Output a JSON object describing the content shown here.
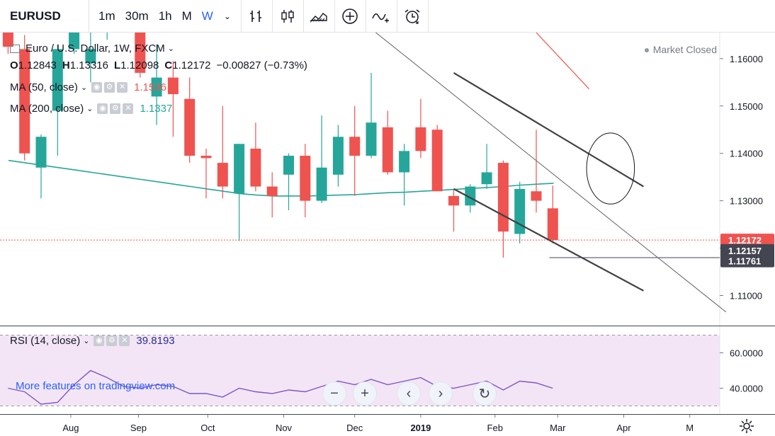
{
  "toolbar": {
    "symbol": "EURUSD",
    "intervals": [
      "1m",
      "30m",
      "1h",
      "M",
      "W"
    ],
    "active_interval": "W",
    "tools": [
      "indicators-icon",
      "candles-icon",
      "compare-icon",
      "add-icon",
      "alert-icon",
      "replay-icon"
    ]
  },
  "legend": {
    "title": "Euro / U.S. Dollar, 1W, FXCM",
    "o_label": "O",
    "o_value": "1.12843",
    "h_label": "H",
    "h_value": "1.13316",
    "l_label": "L",
    "l_value": "1.12098",
    "c_label": "C",
    "c_value": "1.12172",
    "change": "−0.00827 (−0.73%)",
    "ma50_label": "MA (50, close)",
    "ma50_value": "1.1536",
    "ma200_label": "MA (200, close)",
    "ma200_value": "1.1337",
    "market_status": "Market Closed"
  },
  "rsi_legend": {
    "label": "RSI (14, close)",
    "value": "39.8193"
  },
  "watermark": "More features on tradingview.com",
  "colors": {
    "up": "#26a69a",
    "down": "#ef5350",
    "ma50": "#ef5350",
    "ma200": "#26a69a",
    "rsi_line": "#7e57c2",
    "rsi_band": "#f3e5f5",
    "trend": "#404040",
    "accent": "#2962ff"
  },
  "chart_data": {
    "type": "candlestick",
    "title": "Euro / U.S. Dollar, 1W, FXCM",
    "candles": [
      {
        "o": 1.1695,
        "h": 1.172,
        "l": 1.161,
        "c": 1.1625
      },
      {
        "o": 1.162,
        "h": 1.165,
        "l": 1.1385,
        "c": 1.14
      },
      {
        "o": 1.137,
        "h": 1.144,
        "l": 1.1305,
        "c": 1.1435
      },
      {
        "o": 1.149,
        "h": 1.163,
        "l": 1.1395,
        "c": 1.162
      },
      {
        "o": 1.162,
        "h": 1.1735,
        "l": 1.161,
        "c": 1.17
      },
      {
        "o": 1.159,
        "h": 1.17,
        "l": 1.155,
        "c": 1.162
      },
      {
        "o": 1.169,
        "h": 1.1815,
        "l": 1.164,
        "c": 1.1755
      },
      {
        "o": 1.176,
        "h": 1.1815,
        "l": 1.166,
        "c": 1.1695
      },
      {
        "o": 1.169,
        "h": 1.1725,
        "l": 1.156,
        "c": 1.157
      },
      {
        "o": 1.152,
        "h": 1.163,
        "l": 1.146,
        "c": 1.156
      },
      {
        "o": 1.156,
        "h": 1.1595,
        "l": 1.1435,
        "c": 1.1525
      },
      {
        "o": 1.1515,
        "h": 1.156,
        "l": 1.138,
        "c": 1.1395
      },
      {
        "o": 1.1395,
        "h": 1.141,
        "l": 1.1305,
        "c": 1.139
      },
      {
        "o": 1.138,
        "h": 1.15,
        "l": 1.1305,
        "c": 1.133
      },
      {
        "o": 1.1315,
        "h": 1.142,
        "l": 1.1215,
        "c": 1.142
      },
      {
        "o": 1.141,
        "h": 1.1465,
        "l": 1.132,
        "c": 1.133
      },
      {
        "o": 1.133,
        "h": 1.136,
        "l": 1.1265,
        "c": 1.131
      },
      {
        "o": 1.1355,
        "h": 1.14,
        "l": 1.128,
        "c": 1.1395
      },
      {
        "o": 1.1395,
        "h": 1.142,
        "l": 1.1265,
        "c": 1.13
      },
      {
        "o": 1.13,
        "h": 1.148,
        "l": 1.1295,
        "c": 1.137
      },
      {
        "o": 1.1355,
        "h": 1.146,
        "l": 1.133,
        "c": 1.1435
      },
      {
        "o": 1.1435,
        "h": 1.15,
        "l": 1.131,
        "c": 1.1395
      },
      {
        "o": 1.1395,
        "h": 1.157,
        "l": 1.139,
        "c": 1.1465
      },
      {
        "o": 1.1455,
        "h": 1.149,
        "l": 1.1355,
        "c": 1.136
      },
      {
        "o": 1.136,
        "h": 1.142,
        "l": 1.129,
        "c": 1.1405
      },
      {
        "o": 1.1455,
        "h": 1.1515,
        "l": 1.139,
        "c": 1.1405
      },
      {
        "o": 1.145,
        "h": 1.146,
        "l": 1.132,
        "c": 1.132
      },
      {
        "o": 1.131,
        "h": 1.1325,
        "l": 1.1235,
        "c": 1.129
      },
      {
        "o": 1.129,
        "h": 1.1335,
        "l": 1.1275,
        "c": 1.133
      },
      {
        "o": 1.1335,
        "h": 1.142,
        "l": 1.1325,
        "c": 1.136
      },
      {
        "o": 1.138,
        "h": 1.1385,
        "l": 1.118,
        "c": 1.1235
      },
      {
        "o": 1.123,
        "h": 1.134,
        "l": 1.121,
        "c": 1.1325
      },
      {
        "o": 1.132,
        "h": 1.145,
        "l": 1.1275,
        "c": 1.13
      },
      {
        "o": 1.1284,
        "h": 1.1332,
        "l": 1.121,
        "c": 1.1217
      }
    ],
    "ma200": [
      1.1385,
      1.138,
      1.1375,
      1.137,
      1.1365,
      1.136,
      1.1355,
      1.135,
      1.1345,
      1.134,
      1.1335,
      1.133,
      1.1325,
      1.132,
      1.1315,
      1.1312,
      1.131,
      1.131,
      1.131,
      1.1311,
      1.1312,
      1.1313,
      1.1315,
      1.1317,
      1.1318,
      1.132,
      1.1322,
      1.1324,
      1.1326,
      1.1328,
      1.133,
      1.1333,
      1.1335,
      1.1337
    ],
    "ma50": [
      {
        "i": 30,
        "v": 1.1655
      },
      {
        "i": 33.2,
        "v": 1.1536
      }
    ],
    "trend_lines": [
      {
        "from": {
          "i": 16.5,
          "v": 1.176
        },
        "to": {
          "i": 41.5,
          "v": 1.1065
        }
      },
      {
        "from": {
          "i": 25,
          "v": 1.157
        },
        "to": {
          "i": 36.5,
          "v": 1.133
        }
      },
      {
        "from": {
          "i": 25,
          "v": 1.1325
        },
        "to": {
          "i": 36.5,
          "v": 1.111
        }
      }
    ],
    "horizontal_lines": [
      1.1217,
      1.118
    ],
    "ellipse": {
      "i": 34.5,
      "v": 1.1368,
      "ri": 1.45,
      "rv": 0.0075
    },
    "price_labels": [
      {
        "value": "1.12172",
        "v": 1.1217,
        "bg": "#ef5350"
      },
      {
        "value": "1.12157",
        "v": 1.1195,
        "bg": "#434651"
      },
      {
        "value": "1.11761",
        "v": 1.1173,
        "bg": "#434651"
      }
    ],
    "y_ticks": [
      1.16,
      1.15,
      1.14,
      1.13,
      1.12,
      1.11
    ],
    "y_tick_labels": [
      "1.16000",
      "1.15000",
      "1.14000",
      "1.13000",
      "1.12000",
      "1.11000"
    ],
    "ylim": [
      1.1035,
      1.1655
    ],
    "x_labels": [
      {
        "label": "Aug",
        "i": 3.8
      },
      {
        "label": "Sep",
        "i": 7.9
      },
      {
        "label": "Oct",
        "i": 12.1
      },
      {
        "label": "Nov",
        "i": 16.7
      },
      {
        "label": "Dec",
        "i": 21.0
      },
      {
        "label": "2019",
        "i": 25.0
      },
      {
        "label": "Feb",
        "i": 29.5
      },
      {
        "label": "Mar",
        "i": 33.3
      },
      {
        "label": "Apr",
        "i": 37.3
      },
      {
        "label": "M",
        "i": 41.3
      }
    ],
    "rsi": [
      40,
      38,
      31,
      32,
      42,
      50,
      46,
      41,
      40,
      42,
      41,
      37,
      37,
      35,
      40,
      38,
      37,
      39,
      38,
      41,
      44,
      42,
      45,
      42,
      44,
      46,
      41,
      40,
      42,
      44,
      39,
      44,
      43,
      40
    ],
    "rsi_ticks": [
      60,
      40
    ],
    "rsi_tick_labels": [
      "60.0000",
      "40.0000"
    ],
    "rsi_lim": [
      25,
      75
    ]
  }
}
